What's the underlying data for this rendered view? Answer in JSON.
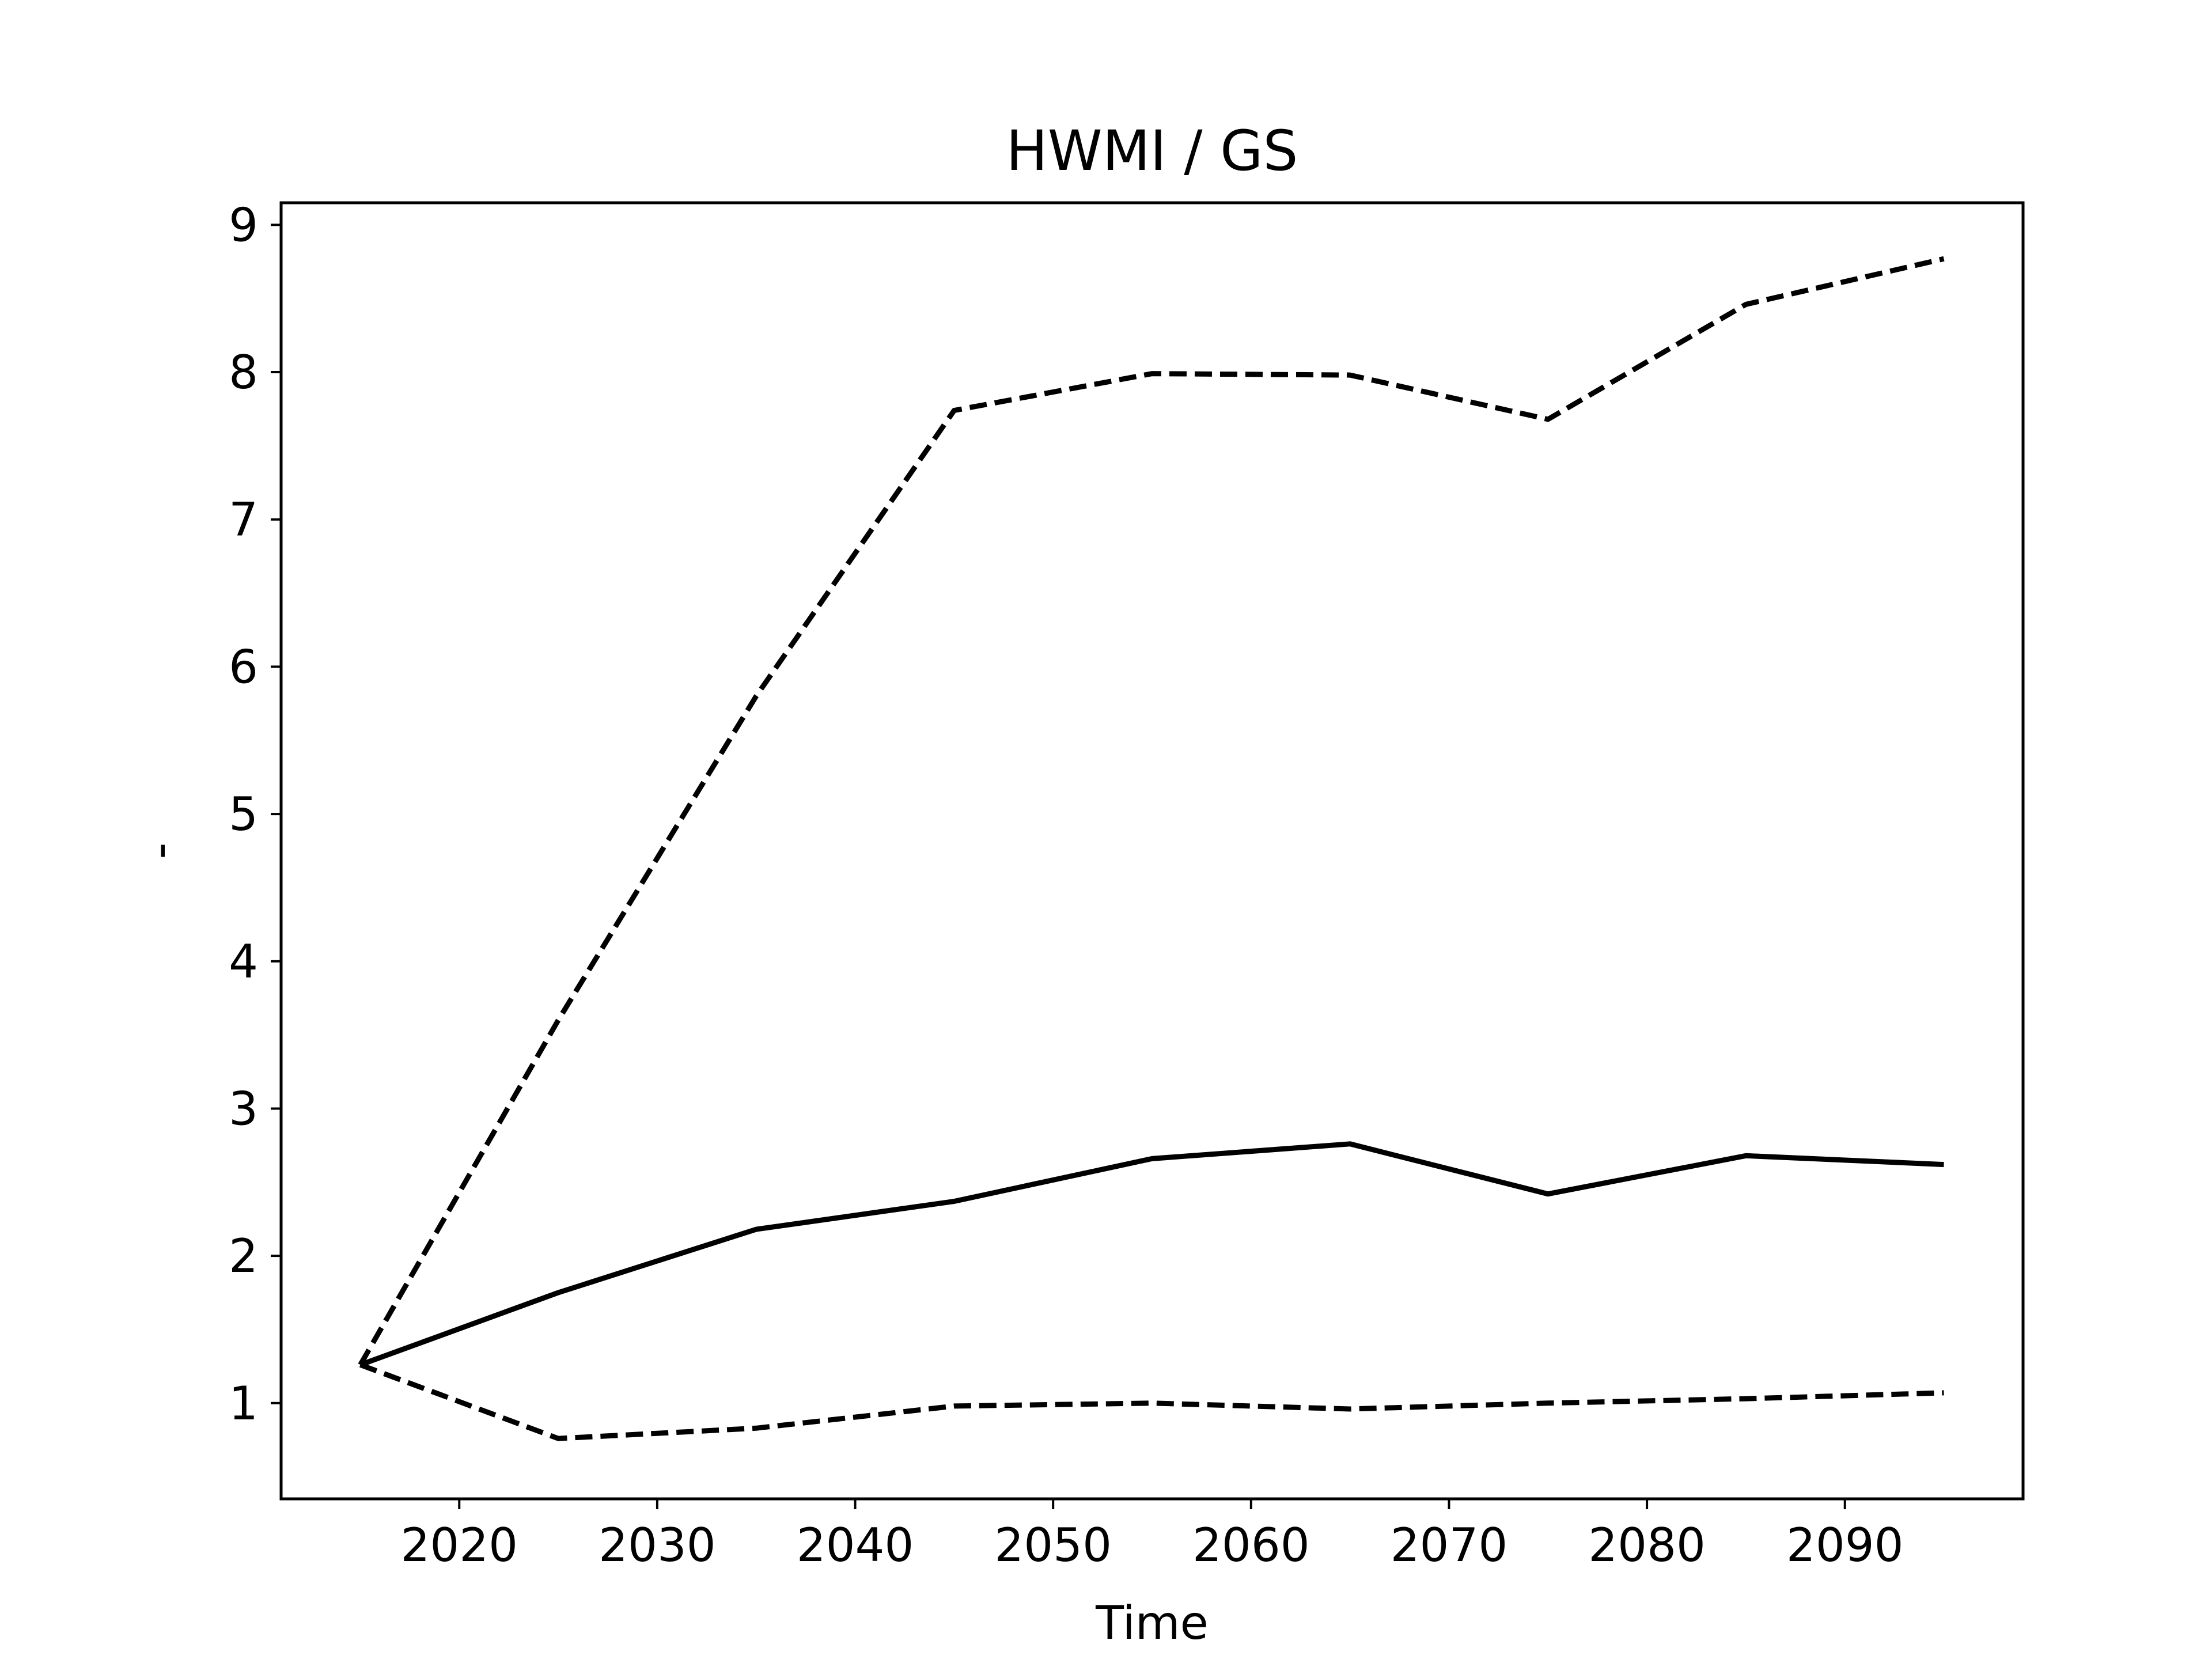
{
  "chart_data": {
    "type": "line",
    "title": "HWMI / GS",
    "xlabel": "Time",
    "ylabel": "-",
    "xlim": [
      2011,
      2099
    ],
    "ylim": [
      0.35,
      9.15
    ],
    "xticks": [
      2020,
      2030,
      2040,
      2050,
      2060,
      2070,
      2080,
      2090
    ],
    "yticks": [
      1,
      2,
      3,
      4,
      5,
      6,
      7,
      8,
      9
    ],
    "grid": false,
    "x": [
      2015,
      2025,
      2035,
      2045,
      2055,
      2065,
      2075,
      2085,
      2095
    ],
    "series": [
      {
        "style": "solid",
        "color": "#000000",
        "values": [
          1.26,
          1.75,
          2.18,
          2.37,
          2.66,
          2.76,
          2.42,
          2.68,
          2.62
        ]
      },
      {
        "style": "dashed",
        "color": "#000000",
        "values": [
          1.26,
          3.6,
          5.8,
          7.74,
          7.99,
          7.98,
          7.68,
          8.46,
          8.77
        ]
      },
      {
        "style": "dashed",
        "color": "#000000",
        "values": [
          1.26,
          0.76,
          0.83,
          0.98,
          1.0,
          0.96,
          1.0,
          1.03,
          1.07
        ]
      }
    ]
  }
}
